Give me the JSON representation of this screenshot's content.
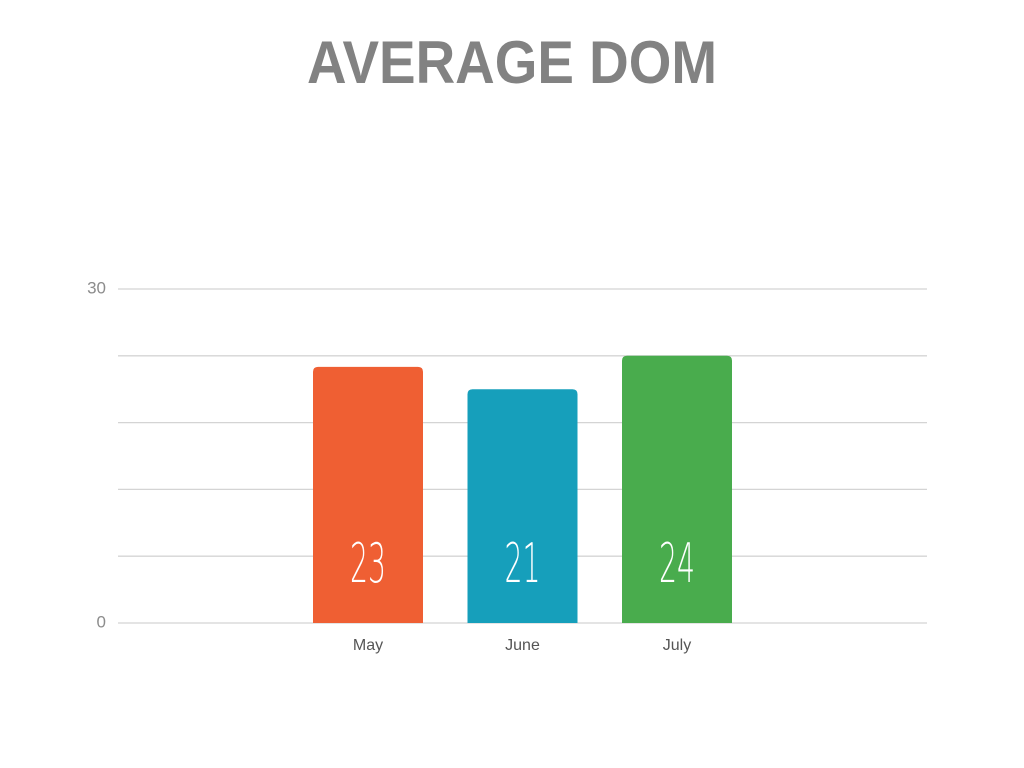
{
  "chart_data": {
    "type": "bar",
    "title": "AVERAGE DOM",
    "categories": [
      "May",
      "June",
      "July"
    ],
    "values": [
      23,
      21,
      24
    ],
    "colors": [
      "#ef5f33",
      "#169fbb",
      "#49ac4d"
    ],
    "ylim": [
      0,
      30
    ],
    "yticks": [
      0,
      30
    ],
    "minor_yticks": [
      6,
      12,
      18,
      24
    ],
    "grid": true
  }
}
